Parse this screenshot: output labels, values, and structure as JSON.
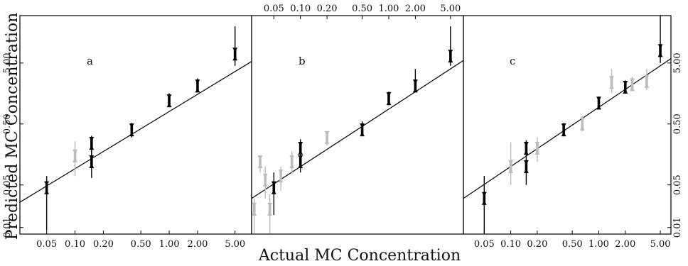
{
  "chart_data": [
    {
      "type": "scatter",
      "panel_label": "a",
      "xlabel": "Actual MC Concentration",
      "ylabel": "Predicted MC Concentration",
      "xscale": "log",
      "yscale": "log",
      "xlim": [
        0.026,
        7.5
      ],
      "ylim": [
        0.0078,
        30
      ],
      "xticks": [
        "0.05",
        "0.10",
        "0.20",
        "0.50",
        "1.00",
        "2.00",
        "5.00"
      ],
      "yticks": [
        "0.01",
        "0.05",
        "0.50",
        "5.00"
      ],
      "xtick_position": "bottom",
      "ytick_position": "left",
      "fit_line": {
        "x": [
          0.026,
          7.5
        ],
        "y": [
          0.026,
          5.3
        ]
      },
      "series": [
        {
          "color": "#000000",
          "points": [
            {
              "x": 0.05,
              "y": 0.045,
              "lo": 0.009,
              "hi": 0.07
            },
            {
              "x": 0.15,
              "y": 0.12,
              "lo": 0.065,
              "hi": 0.22
            },
            {
              "x": 0.15,
              "y": 0.24,
              "lo": 0.15,
              "hi": 0.32
            },
            {
              "x": 0.4,
              "y": 0.4,
              "lo": 0.3,
              "hi": 0.52
            },
            {
              "x": 1.0,
              "y": 1.2,
              "lo": 1.0,
              "hi": 1.6
            },
            {
              "x": 2.0,
              "y": 2.1,
              "lo": 1.7,
              "hi": 2.8
            },
            {
              "x": 5.0,
              "y": 7.0,
              "lo": 4.5,
              "hi": 20.0
            }
          ]
        },
        {
          "color": "#bbbbbb",
          "points": [
            {
              "x": 0.1,
              "y": 0.15,
              "lo": 0.07,
              "hi": 0.26
            }
          ]
        }
      ]
    },
    {
      "type": "scatter",
      "panel_label": "b",
      "xscale": "log",
      "yscale": "log",
      "xlim": [
        0.028,
        7.0
      ],
      "ylim": [
        0.0078,
        30
      ],
      "xticks": [
        "0.05",
        "0.10",
        "0.20",
        "0.50",
        "1.00",
        "2.00",
        "5.00"
      ],
      "xtick_position": "top",
      "fit_line": {
        "x": [
          0.028,
          7.0
        ],
        "y": [
          0.03,
          5.5
        ]
      },
      "series": [
        {
          "color": "#000000",
          "points": [
            {
              "x": 0.05,
              "y": 0.045,
              "lo": 0.016,
              "hi": 0.08
            },
            {
              "x": 0.1,
              "y": 0.12,
              "lo": 0.08,
              "hi": 0.18
            },
            {
              "x": 0.1,
              "y": 0.2,
              "lo": 0.14,
              "hi": 0.28
            },
            {
              "x": 0.5,
              "y": 0.4,
              "lo": 0.33,
              "hi": 0.55
            },
            {
              "x": 1.0,
              "y": 1.3,
              "lo": 1.05,
              "hi": 1.7
            },
            {
              "x": 2.0,
              "y": 2.1,
              "lo": 1.7,
              "hi": 4.0
            },
            {
              "x": 5.0,
              "y": 6.5,
              "lo": 4.5,
              "hi": 20.0
            }
          ]
        },
        {
          "color": "#bbbbbb",
          "points": [
            {
              "x": 0.03,
              "y": 0.02,
              "lo": 0.008,
              "hi": 0.03
            },
            {
              "x": 0.035,
              "y": 0.12,
              "lo": 0.08,
              "hi": 0.15
            },
            {
              "x": 0.04,
              "y": 0.06,
              "lo": 0.03,
              "hi": 0.1
            },
            {
              "x": 0.045,
              "y": 0.02,
              "lo": 0.008,
              "hi": 0.035
            },
            {
              "x": 0.06,
              "y": 0.07,
              "lo": 0.04,
              "hi": 0.1
            },
            {
              "x": 0.08,
              "y": 0.12,
              "lo": 0.08,
              "hi": 0.18
            },
            {
              "x": 0.2,
              "y": 0.3,
              "lo": 0.22,
              "hi": 0.38
            }
          ]
        }
      ]
    },
    {
      "type": "scatter",
      "panel_label": "c",
      "xscale": "log",
      "yscale": "log",
      "xlim": [
        0.029,
        6.6
      ],
      "ylim": [
        0.0078,
        30
      ],
      "xticks": [
        "0.05",
        "0.10",
        "0.20",
        "0.50",
        "1.00",
        "2.00",
        "5.00"
      ],
      "yticks": [
        "0.01",
        "0.05",
        "0.50",
        "5.00"
      ],
      "xtick_position": "bottom",
      "ytick_position": "right",
      "fit_line": {
        "x": [
          0.029,
          6.6
        ],
        "y": [
          0.03,
          5.9
        ]
      },
      "series": [
        {
          "color": "#000000",
          "points": [
            {
              "x": 0.05,
              "y": 0.03,
              "lo": 0.008,
              "hi": 0.07
            },
            {
              "x": 0.15,
              "y": 0.1,
              "lo": 0.05,
              "hi": 0.15
            },
            {
              "x": 0.15,
              "y": 0.2,
              "lo": 0.14,
              "hi": 0.27
            },
            {
              "x": 0.4,
              "y": 0.4,
              "lo": 0.33,
              "hi": 0.52
            },
            {
              "x": 1.0,
              "y": 1.1,
              "lo": 0.95,
              "hi": 1.4
            },
            {
              "x": 2.0,
              "y": 2.0,
              "lo": 1.7,
              "hi": 2.6
            },
            {
              "x": 5.0,
              "y": 8.0,
              "lo": 5.0,
              "hi": 30.0
            }
          ]
        },
        {
          "color": "#bbbbbb",
          "points": [
            {
              "x": 0.1,
              "y": 0.1,
              "lo": 0.05,
              "hi": 0.25
            },
            {
              "x": 0.2,
              "y": 0.2,
              "lo": 0.12,
              "hi": 0.3
            },
            {
              "x": 0.65,
              "y": 0.5,
              "lo": 0.38,
              "hi": 0.68
            },
            {
              "x": 1.4,
              "y": 2.4,
              "lo": 1.6,
              "hi": 4.0
            },
            {
              "x": 2.4,
              "y": 2.2,
              "lo": 1.8,
              "hi": 3.0
            },
            {
              "x": 3.5,
              "y": 2.5,
              "lo": 1.8,
              "hi": 4.0
            }
          ]
        }
      ]
    }
  ]
}
